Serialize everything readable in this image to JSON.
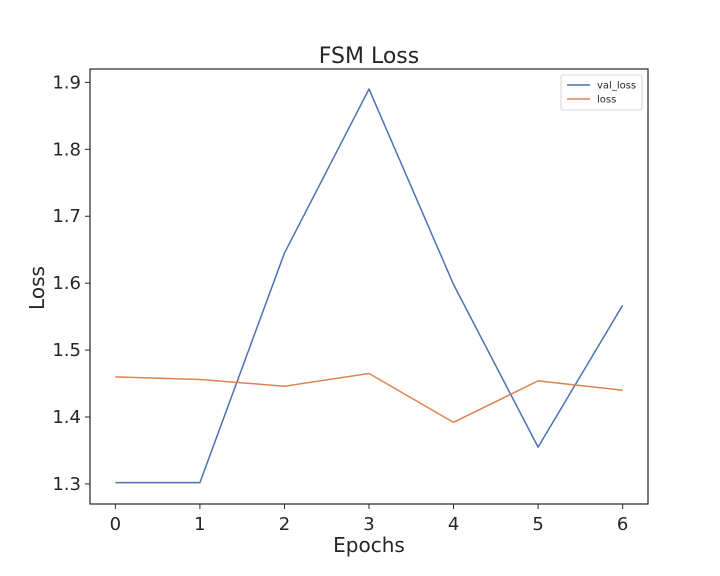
{
  "chart_data": {
    "type": "line",
    "title": "FSM Loss",
    "xlabel": "Epochs",
    "ylabel": "Loss",
    "x": [
      0,
      1,
      2,
      3,
      4,
      5,
      6
    ],
    "xticks": [
      "0",
      "1",
      "2",
      "3",
      "4",
      "5",
      "6"
    ],
    "yticks": [
      "1.3",
      "1.4",
      "1.5",
      "1.6",
      "1.7",
      "1.8",
      "1.9"
    ],
    "xlim": [
      -0.3,
      6.3
    ],
    "ylim": [
      1.27,
      1.92
    ],
    "grid": false,
    "legend": "top-right",
    "series": [
      {
        "name": "val_loss",
        "color": "#4c72b0",
        "values": [
          1.302,
          1.302,
          1.645,
          1.89,
          1.598,
          1.355,
          1.567
        ]
      },
      {
        "name": "loss",
        "color": "#dd8452",
        "values": [
          1.46,
          1.456,
          1.446,
          1.465,
          1.392,
          1.454,
          1.44
        ]
      }
    ]
  }
}
